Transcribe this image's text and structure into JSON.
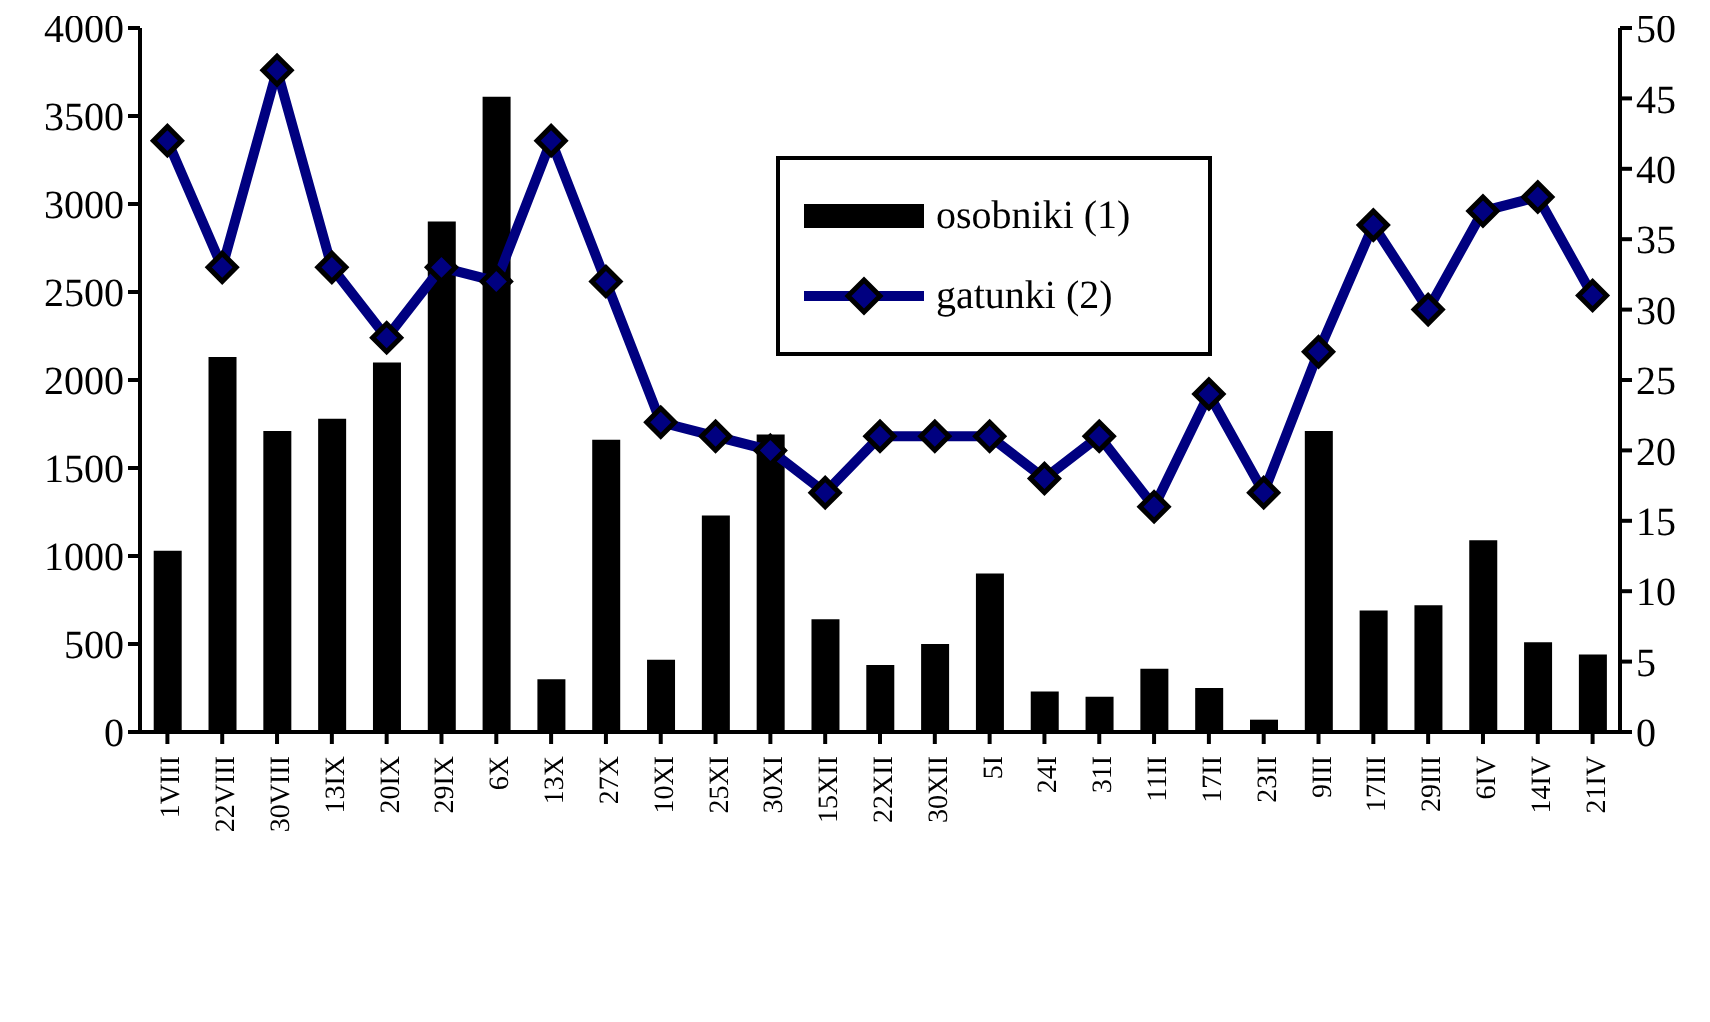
{
  "chart_data": {
    "type": "bar",
    "categories": [
      "1VIII",
      "22VIII",
      "30VIII",
      "13IX",
      "20IX",
      "29IX",
      "6X",
      "13X",
      "27X",
      "10XI",
      "25XI",
      "30XI",
      "15XII",
      "22XII",
      "30XII",
      "5I",
      "24I",
      "31I",
      "11II",
      "17II",
      "23II",
      "9III",
      "17III",
      "29III",
      "6IV",
      "14IV",
      "21IV"
    ],
    "series": [
      {
        "name": "osobniki (1)",
        "color": "#000000",
        "values": [
          1030,
          2130,
          1710,
          1780,
          2100,
          2900,
          3610,
          300,
          1660,
          410,
          1230,
          1690,
          640,
          380,
          500,
          900,
          230,
          200,
          360,
          250,
          70,
          1710,
          690,
          720,
          1090,
          510,
          440
        ]
      },
      {
        "name": "gatunki (2)",
        "type": "line",
        "axis": "y2",
        "color": "#000080",
        "values": [
          42,
          33,
          47,
          33,
          28,
          33,
          32,
          42,
          32,
          22,
          21,
          20,
          17,
          21,
          21,
          21,
          18,
          21,
          16,
          24,
          17,
          27,
          36,
          30,
          37,
          38,
          31
        ]
      }
    ],
    "ylim": [
      0,
      4000
    ],
    "yticks": [
      0,
      500,
      1000,
      1500,
      2000,
      2500,
      3000,
      3500,
      4000
    ],
    "y2lim": [
      0,
      50
    ],
    "y2ticks": [
      0,
      5,
      10,
      15,
      20,
      25,
      30,
      35,
      40,
      45,
      50
    ],
    "marker": "diamond",
    "line_style": "solid",
    "legend": "top"
  }
}
